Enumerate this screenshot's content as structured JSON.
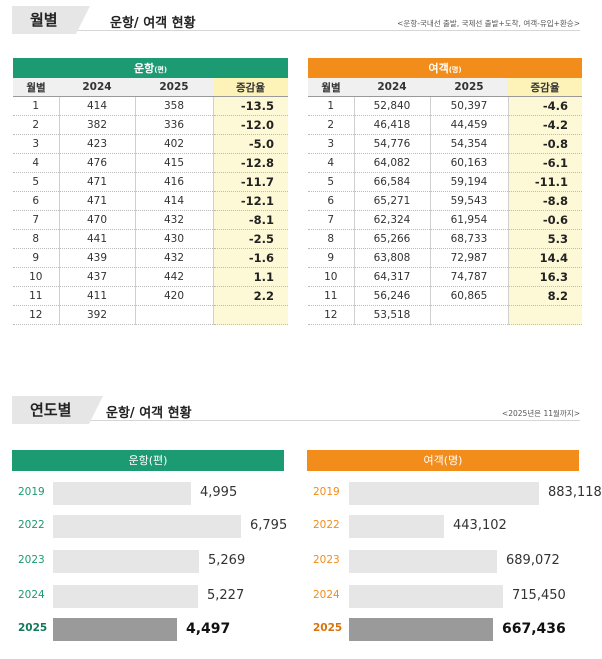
{
  "monthly": {
    "tab": "월별",
    "title": "운항/ 여객 현황",
    "note": "<운항-국내선 출발, 국제선 출발+도착, 여객-유입+환승>"
  },
  "flights_table": {
    "caption": "운항",
    "unit": "(편)",
    "headers": [
      "월별",
      "2024",
      "2025",
      "증감율"
    ],
    "rows": [
      [
        "1",
        "414",
        "358",
        "-13.5"
      ],
      [
        "2",
        "382",
        "336",
        "-12.0"
      ],
      [
        "3",
        "423",
        "402",
        "-5.0"
      ],
      [
        "4",
        "476",
        "415",
        "-12.8"
      ],
      [
        "5",
        "471",
        "416",
        "-11.7"
      ],
      [
        "6",
        "471",
        "414",
        "-12.1"
      ],
      [
        "7",
        "470",
        "432",
        "-8.1"
      ],
      [
        "8",
        "441",
        "430",
        "-2.5"
      ],
      [
        "9",
        "439",
        "432",
        "-1.6"
      ],
      [
        "10",
        "437",
        "442",
        "1.1"
      ],
      [
        "11",
        "411",
        "420",
        "2.2"
      ],
      [
        "12",
        "392",
        "",
        ""
      ]
    ]
  },
  "passengers_table": {
    "caption": "여객",
    "unit": "(명)",
    "headers": [
      "월별",
      "2024",
      "2025",
      "증감율"
    ],
    "rows": [
      [
        "1",
        "52,840",
        "50,397",
        "-4.6"
      ],
      [
        "2",
        "46,418",
        "44,459",
        "-4.2"
      ],
      [
        "3",
        "54,776",
        "54,354",
        "-0.8"
      ],
      [
        "4",
        "64,082",
        "60,163",
        "-6.1"
      ],
      [
        "5",
        "66,584",
        "59,194",
        "-11.1"
      ],
      [
        "6",
        "65,271",
        "59,543",
        "-8.8"
      ],
      [
        "7",
        "62,324",
        "61,954",
        "-0.6"
      ],
      [
        "8",
        "65,266",
        "68,733",
        "5.3"
      ],
      [
        "9",
        "63,808",
        "72,987",
        "14.4"
      ],
      [
        "10",
        "64,317",
        "74,787",
        "16.3"
      ],
      [
        "11",
        "56,246",
        "60,865",
        "8.2"
      ],
      [
        "12",
        "53,518",
        "",
        ""
      ]
    ]
  },
  "yearly": {
    "tab": "연도별",
    "title": "운항/ 여객 현황",
    "note": "<2025년은 11월까지>"
  },
  "chart_data": [
    {
      "type": "bar",
      "orientation": "horizontal",
      "title": "운항(편)",
      "categories": [
        "2019",
        "2022",
        "2023",
        "2024",
        "2025"
      ],
      "values": [
        4995,
        6795,
        5269,
        5227,
        4497
      ],
      "labels": [
        "4,995",
        "6,795",
        "5,269",
        "5,227",
        "4,497"
      ],
      "highlight": "2025"
    },
    {
      "type": "bar",
      "orientation": "horizontal",
      "title": "여객(명)",
      "categories": [
        "2019",
        "2022",
        "2023",
        "2024",
        "2025"
      ],
      "values": [
        883118,
        443102,
        689072,
        715450,
        667436
      ],
      "labels": [
        "883,118",
        "443,102",
        "689,072",
        "715,450",
        "667,436"
      ],
      "highlight": "2025"
    }
  ],
  "colors": {
    "green": "#1c9a72",
    "orange": "#f28c1a",
    "highlight_bg": "#fdf8d6",
    "bar": "#e6e6e6",
    "bar_current": "#9a9a9a"
  }
}
